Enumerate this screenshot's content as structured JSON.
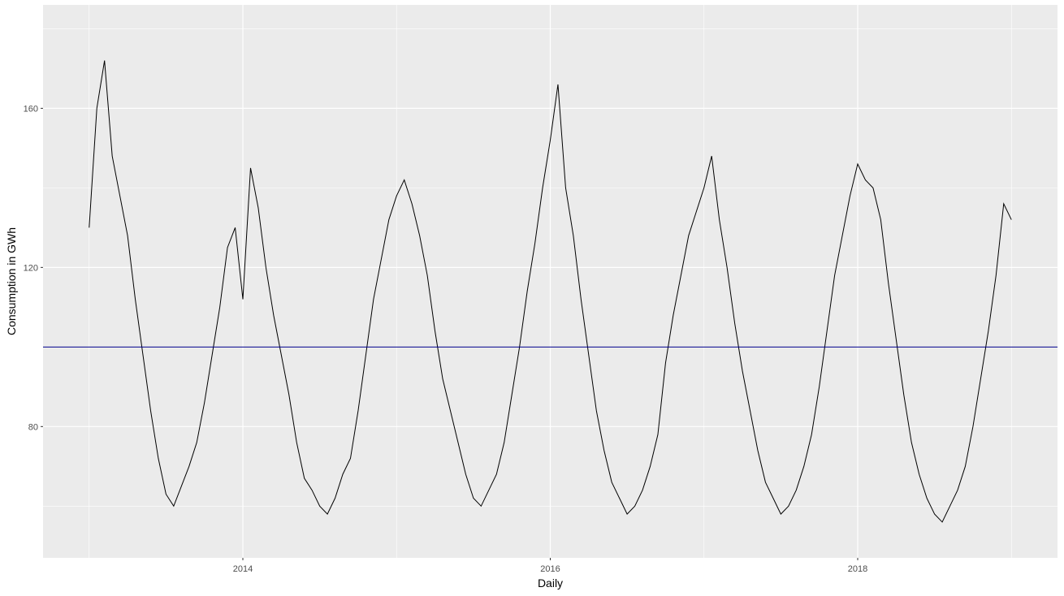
{
  "chart_data": {
    "type": "line",
    "title": "",
    "xlabel": "Daily",
    "ylabel": "Consumption in GWh",
    "x_ticks": [
      2014,
      2016,
      2018
    ],
    "x_tick_labels": [
      "2014",
      "2016",
      "2018"
    ],
    "y_ticks": [
      80,
      120,
      160
    ],
    "y_tick_labels": [
      "80",
      "120",
      "160"
    ],
    "xlim": [
      2012.7,
      2019.3
    ],
    "ylim": [
      47,
      186
    ],
    "grid": true,
    "legend": "none",
    "colors": {
      "panel": "#EBEBEB",
      "grid": "#FFFFFF",
      "line": "#000000",
      "reference": "#00008B"
    },
    "reference_line": {
      "y": 100,
      "color": "#00008B"
    },
    "series": [
      {
        "x": [
          2013.0,
          2013.05,
          2013.1,
          2013.15,
          2013.2,
          2013.25,
          2013.3,
          2013.35,
          2013.4,
          2013.45,
          2013.5,
          2013.55,
          2013.6,
          2013.65,
          2013.7,
          2013.75,
          2013.8,
          2013.85,
          2013.9,
          2013.95,
          2014.0,
          2014.05,
          2014.1,
          2014.15,
          2014.2,
          2014.25,
          2014.3,
          2014.35,
          2014.4,
          2014.45,
          2014.5,
          2014.55,
          2014.6,
          2014.65,
          2014.7,
          2014.75,
          2014.8,
          2014.85,
          2014.9,
          2014.95,
          2015.0,
          2015.05,
          2015.1,
          2015.15,
          2015.2,
          2015.25,
          2015.3,
          2015.35,
          2015.4,
          2015.45,
          2015.5,
          2015.55,
          2015.6,
          2015.65,
          2015.7,
          2015.75,
          2015.8,
          2015.85,
          2015.9,
          2015.95,
          2016.0,
          2016.05,
          2016.1,
          2016.15,
          2016.2,
          2016.25,
          2016.3,
          2016.35,
          2016.4,
          2016.45,
          2016.5,
          2016.55,
          2016.6,
          2016.65,
          2016.7,
          2016.75,
          2016.8,
          2016.85,
          2016.9,
          2016.95,
          2017.0,
          2017.05,
          2017.1,
          2017.15,
          2017.2,
          2017.25,
          2017.3,
          2017.35,
          2017.4,
          2017.45,
          2017.5,
          2017.55,
          2017.6,
          2017.65,
          2017.7,
          2017.75,
          2017.8,
          2017.85,
          2017.9,
          2017.95,
          2018.0,
          2018.05,
          2018.1,
          2018.15,
          2018.2,
          2018.25,
          2018.3,
          2018.35,
          2018.4,
          2018.45,
          2018.5,
          2018.55,
          2018.6,
          2018.65,
          2018.7,
          2018.75,
          2018.8,
          2018.85,
          2018.9,
          2018.95,
          2019.0
        ],
        "y": [
          130,
          160,
          172,
          148,
          138,
          128,
          112,
          98,
          84,
          72,
          63,
          60,
          65,
          70,
          76,
          86,
          98,
          110,
          125,
          130,
          112,
          145,
          135,
          120,
          108,
          98,
          88,
          76,
          67,
          64,
          60,
          58,
          62,
          68,
          72,
          84,
          98,
          112,
          122,
          132,
          138,
          142,
          136,
          128,
          118,
          104,
          92,
          84,
          76,
          68,
          62,
          60,
          64,
          68,
          76,
          88,
          100,
          114,
          126,
          140,
          152,
          166,
          140,
          128,
          112,
          98,
          84,
          74,
          66,
          62,
          58,
          60,
          64,
          70,
          78,
          96,
          108,
          118,
          128,
          134,
          140,
          148,
          132,
          120,
          106,
          94,
          84,
          74,
          66,
          62,
          58,
          60,
          64,
          70,
          78,
          90,
          104,
          118,
          128,
          138,
          146,
          142,
          140,
          132,
          116,
          102,
          88,
          76,
          68,
          62,
          58,
          56,
          60,
          64,
          70,
          80,
          92,
          104,
          118,
          136,
          132
        ]
      }
    ]
  }
}
